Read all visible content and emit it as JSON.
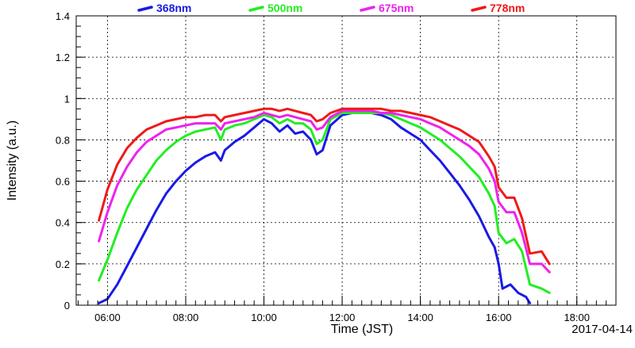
{
  "chart_data": {
    "type": "line",
    "title": "",
    "xlabel": "Time (JST)",
    "ylabel": "Intensity (a.u.)",
    "date": "2017-04-14",
    "xlim": [
      5.2,
      19.0
    ],
    "ylim": [
      0,
      1.4
    ],
    "grid": true,
    "legend": "top",
    "x_ticks": [
      {
        "value": 6,
        "label": "06:00"
      },
      {
        "value": 8,
        "label": "08:00"
      },
      {
        "value": 10,
        "label": "10:00"
      },
      {
        "value": 12,
        "label": "12:00"
      },
      {
        "value": 14,
        "label": "14:00"
      },
      {
        "value": 16,
        "label": "16:00"
      },
      {
        "value": 18,
        "label": "18:00"
      }
    ],
    "y_ticks": [
      {
        "value": 0,
        "label": "0"
      },
      {
        "value": 0.2,
        "label": "0.2"
      },
      {
        "value": 0.4,
        "label": "0.4"
      },
      {
        "value": 0.6,
        "label": "0.6"
      },
      {
        "value": 0.8,
        "label": "0.8"
      },
      {
        "value": 1.0,
        "label": "1"
      },
      {
        "value": 1.2,
        "label": "1.2"
      },
      {
        "value": 1.4,
        "label": "1.4"
      }
    ],
    "series": [
      {
        "name": "368nm",
        "color": "#1a1ae6",
        "x": [
          5.78,
          6.0,
          6.25,
          6.5,
          6.75,
          7.0,
          7.25,
          7.5,
          7.75,
          8.0,
          8.25,
          8.5,
          8.75,
          8.9,
          9.0,
          9.25,
          9.5,
          9.75,
          10.0,
          10.2,
          10.4,
          10.6,
          10.8,
          11.0,
          11.2,
          11.35,
          11.5,
          11.7,
          12.0,
          12.25,
          12.5,
          12.75,
          13.0,
          13.25,
          13.5,
          13.75,
          14.0,
          14.25,
          14.5,
          14.75,
          15.0,
          15.25,
          15.5,
          15.75,
          15.9,
          16.0,
          16.1,
          16.3,
          16.5,
          16.7,
          16.8
        ],
        "y": [
          0.01,
          0.03,
          0.1,
          0.19,
          0.28,
          0.37,
          0.46,
          0.54,
          0.6,
          0.65,
          0.69,
          0.72,
          0.74,
          0.7,
          0.75,
          0.79,
          0.82,
          0.86,
          0.9,
          0.88,
          0.84,
          0.87,
          0.83,
          0.84,
          0.8,
          0.73,
          0.75,
          0.87,
          0.92,
          0.93,
          0.93,
          0.93,
          0.92,
          0.9,
          0.86,
          0.83,
          0.8,
          0.75,
          0.7,
          0.64,
          0.58,
          0.51,
          0.43,
          0.33,
          0.28,
          0.2,
          0.08,
          0.1,
          0.06,
          0.04,
          0.01
        ]
      },
      {
        "name": "500nm",
        "color": "#22ee22",
        "x": [
          5.78,
          6.0,
          6.25,
          6.5,
          6.75,
          7.0,
          7.25,
          7.5,
          7.75,
          8.0,
          8.25,
          8.5,
          8.75,
          8.9,
          9.0,
          9.25,
          9.5,
          9.75,
          10.0,
          10.2,
          10.4,
          10.6,
          10.8,
          11.0,
          11.2,
          11.35,
          11.5,
          11.7,
          12.0,
          12.25,
          12.5,
          12.75,
          13.0,
          13.25,
          13.5,
          13.75,
          14.0,
          14.25,
          14.5,
          14.75,
          15.0,
          15.25,
          15.5,
          15.75,
          15.9,
          16.0,
          16.2,
          16.4,
          16.6,
          16.8,
          17.1,
          17.3
        ],
        "y": [
          0.12,
          0.22,
          0.35,
          0.47,
          0.56,
          0.63,
          0.7,
          0.75,
          0.79,
          0.82,
          0.84,
          0.85,
          0.86,
          0.8,
          0.85,
          0.87,
          0.88,
          0.9,
          0.92,
          0.91,
          0.88,
          0.9,
          0.88,
          0.88,
          0.85,
          0.78,
          0.8,
          0.9,
          0.93,
          0.93,
          0.93,
          0.93,
          0.93,
          0.92,
          0.9,
          0.88,
          0.86,
          0.83,
          0.8,
          0.76,
          0.72,
          0.67,
          0.62,
          0.54,
          0.48,
          0.35,
          0.3,
          0.32,
          0.26,
          0.1,
          0.08,
          0.06
        ]
      },
      {
        "name": "675nm",
        "color": "#ee22ee",
        "x": [
          5.78,
          6.0,
          6.25,
          6.5,
          6.75,
          7.0,
          7.25,
          7.5,
          7.75,
          8.0,
          8.25,
          8.5,
          8.75,
          8.9,
          9.0,
          9.25,
          9.5,
          9.75,
          10.0,
          10.2,
          10.4,
          10.6,
          10.8,
          11.0,
          11.2,
          11.35,
          11.5,
          11.7,
          12.0,
          12.25,
          12.5,
          12.75,
          13.0,
          13.25,
          13.5,
          13.75,
          14.0,
          14.25,
          14.5,
          14.75,
          15.0,
          15.25,
          15.5,
          15.75,
          15.9,
          16.0,
          16.2,
          16.4,
          16.6,
          16.8,
          17.1,
          17.3
        ],
        "y": [
          0.31,
          0.45,
          0.58,
          0.67,
          0.74,
          0.79,
          0.82,
          0.85,
          0.86,
          0.87,
          0.88,
          0.88,
          0.88,
          0.85,
          0.88,
          0.89,
          0.9,
          0.91,
          0.93,
          0.92,
          0.91,
          0.92,
          0.91,
          0.9,
          0.89,
          0.85,
          0.86,
          0.91,
          0.94,
          0.94,
          0.94,
          0.94,
          0.93,
          0.93,
          0.92,
          0.91,
          0.9,
          0.88,
          0.86,
          0.83,
          0.8,
          0.77,
          0.73,
          0.66,
          0.6,
          0.5,
          0.45,
          0.45,
          0.35,
          0.2,
          0.2,
          0.16
        ]
      },
      {
        "name": "778nm",
        "color": "#ee1a1a",
        "x": [
          5.78,
          6.0,
          6.25,
          6.5,
          6.75,
          7.0,
          7.25,
          7.5,
          7.75,
          8.0,
          8.25,
          8.5,
          8.75,
          8.9,
          9.0,
          9.25,
          9.5,
          9.75,
          10.0,
          10.2,
          10.4,
          10.6,
          10.8,
          11.0,
          11.2,
          11.35,
          11.5,
          11.7,
          12.0,
          12.25,
          12.5,
          12.75,
          13.0,
          13.25,
          13.5,
          13.75,
          14.0,
          14.25,
          14.5,
          14.75,
          15.0,
          15.25,
          15.5,
          15.75,
          15.9,
          16.0,
          16.2,
          16.4,
          16.6,
          16.8,
          17.1,
          17.3
        ],
        "y": [
          0.41,
          0.56,
          0.68,
          0.76,
          0.81,
          0.85,
          0.87,
          0.89,
          0.9,
          0.91,
          0.91,
          0.92,
          0.92,
          0.89,
          0.91,
          0.92,
          0.93,
          0.94,
          0.95,
          0.95,
          0.94,
          0.95,
          0.94,
          0.93,
          0.92,
          0.89,
          0.9,
          0.93,
          0.95,
          0.95,
          0.95,
          0.95,
          0.95,
          0.94,
          0.94,
          0.93,
          0.92,
          0.91,
          0.89,
          0.87,
          0.85,
          0.82,
          0.79,
          0.72,
          0.67,
          0.57,
          0.52,
          0.52,
          0.42,
          0.25,
          0.26,
          0.2
        ]
      }
    ]
  }
}
